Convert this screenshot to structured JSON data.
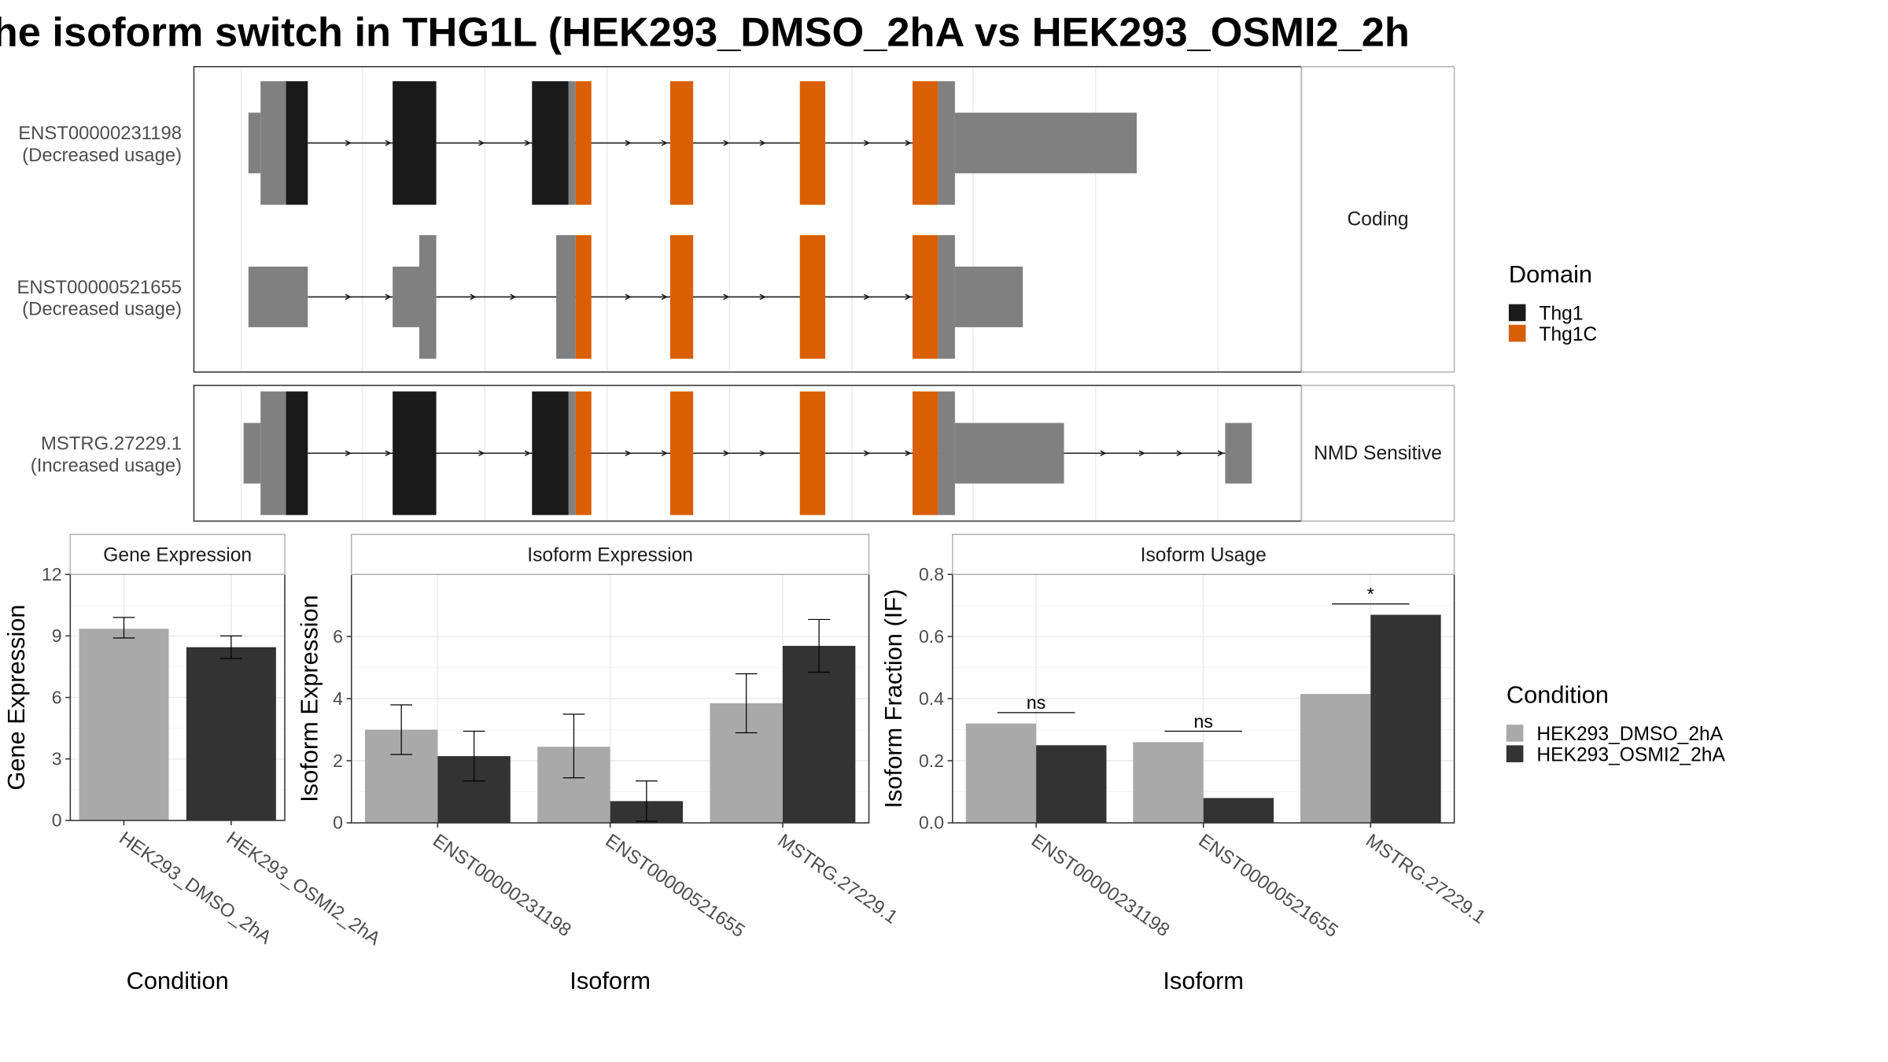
{
  "title": "he isoform switch in THG1L (HEK293_DMSO_2hA vs HEK293_OSMI2_2h",
  "colors": {
    "utr": "#808080",
    "thg1": "#1a1a1a",
    "thg1c": "#d95f02",
    "dmso": "#a9a9a9",
    "osmi": "#333333",
    "grid": "#ebebeb",
    "panel_border": "#333333",
    "strip_border": "#b3b3b3"
  },
  "transcripts": {
    "facets": [
      {
        "label": "Coding",
        "isoforms": [
          {
            "id": "ENST00000231198",
            "note": "(Decreased usage)"
          },
          {
            "id": "ENST00000521655",
            "note": "(Decreased usage)"
          }
        ]
      },
      {
        "label": "NMD Sensitive",
        "isoforms": [
          {
            "id": "MSTRG.27229.1",
            "note": "(Increased usage)"
          }
        ]
      }
    ]
  },
  "legend_domain": {
    "title": "Domain",
    "items": [
      {
        "label": "Thg1",
        "color": "#1a1a1a"
      },
      {
        "label": "Thg1C",
        "color": "#d95f02"
      }
    ]
  },
  "legend_condition": {
    "title": "Condition",
    "items": [
      {
        "label": "HEK293_DMSO_2hA",
        "color": "#a9a9a9"
      },
      {
        "label": "HEK293_OSMI2_2hA",
        "color": "#333333"
      }
    ]
  },
  "chart_data": [
    {
      "type": "bar",
      "title": "Gene Expression",
      "xlabel": "Condition",
      "ylabel": "Gene Expression",
      "ylim": [
        0,
        12
      ],
      "yticks": [
        0,
        3,
        6,
        9,
        12
      ],
      "categories": [
        "HEK293_DMSO_2hA",
        "HEK293_OSMI2_2hA"
      ],
      "values": [
        9.35,
        8.45
      ],
      "errors": [
        [
          8.9,
          9.9
        ],
        [
          7.9,
          9.0
        ]
      ]
    },
    {
      "type": "bar",
      "title": "Isoform Expression",
      "xlabel": "Isoform",
      "ylabel": "Isoform Expression",
      "ylim": [
        0,
        8
      ],
      "yticks": [
        0,
        2,
        4,
        6
      ],
      "categories": [
        "ENST00000231198",
        "ENST00000521655",
        "MSTRG.27229.1"
      ],
      "series": [
        {
          "name": "HEK293_DMSO_2hA",
          "values": [
            3.0,
            2.45,
            3.85
          ],
          "errors": [
            [
              2.2,
              3.8
            ],
            [
              1.45,
              3.5
            ],
            [
              2.9,
              4.8
            ]
          ]
        },
        {
          "name": "HEK293_OSMI2_2hA",
          "values": [
            2.15,
            0.7,
            5.7
          ],
          "errors": [
            [
              1.35,
              2.95
            ],
            [
              0.05,
              1.35
            ],
            [
              4.85,
              6.55
            ]
          ]
        }
      ]
    },
    {
      "type": "bar",
      "title": "Isoform Usage",
      "xlabel": "Isoform",
      "ylabel": "Isoform Fraction (IF)",
      "ylim": [
        0,
        0.8
      ],
      "yticks": [
        0.0,
        0.2,
        0.4,
        0.6,
        0.8
      ],
      "categories": [
        "ENST00000231198",
        "ENST00000521655",
        "MSTRG.27229.1"
      ],
      "series": [
        {
          "name": "HEK293_DMSO_2hA",
          "values": [
            0.32,
            0.26,
            0.415
          ]
        },
        {
          "name": "HEK293_OSMI2_2hA",
          "values": [
            0.25,
            0.08,
            0.67
          ]
        }
      ],
      "significance": [
        "ns",
        "ns",
        "*"
      ]
    }
  ]
}
